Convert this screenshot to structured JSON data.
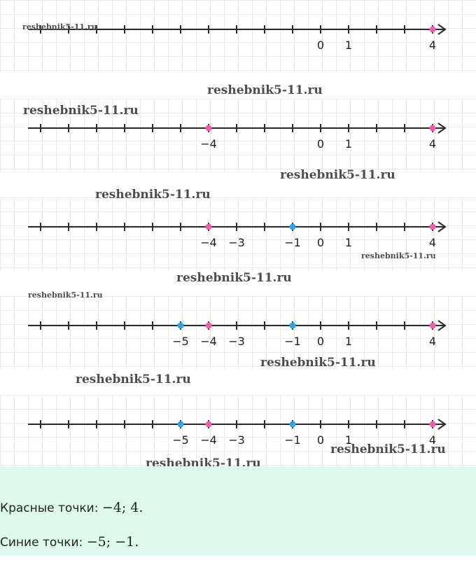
{
  "number_lines": [
    {
      "labels": [
        {
          "value": 0,
          "text": "0"
        },
        {
          "value": 1,
          "text": "1"
        },
        {
          "value": 4,
          "text": "4"
        }
      ],
      "points": [
        {
          "value": 4,
          "color": "red"
        }
      ]
    },
    {
      "labels": [
        {
          "value": -4,
          "text": "−4"
        },
        {
          "value": 0,
          "text": "0"
        },
        {
          "value": 1,
          "text": "1"
        },
        {
          "value": 4,
          "text": "4"
        }
      ],
      "points": [
        {
          "value": -4,
          "color": "red"
        },
        {
          "value": 4,
          "color": "red"
        }
      ]
    },
    {
      "labels": [
        {
          "value": -4,
          "text": "−4"
        },
        {
          "value": -3,
          "text": "−3"
        },
        {
          "value": -1,
          "text": "−1"
        },
        {
          "value": 0,
          "text": "0"
        },
        {
          "value": 1,
          "text": "1"
        },
        {
          "value": 4,
          "text": "4"
        }
      ],
      "points": [
        {
          "value": -4,
          "color": "red"
        },
        {
          "value": -1,
          "color": "blue"
        },
        {
          "value": 4,
          "color": "red"
        }
      ]
    },
    {
      "labels": [
        {
          "value": -5,
          "text": "−5"
        },
        {
          "value": -4,
          "text": "−4"
        },
        {
          "value": -3,
          "text": "−3"
        },
        {
          "value": -1,
          "text": "−1"
        },
        {
          "value": 0,
          "text": "0"
        },
        {
          "value": 1,
          "text": "1"
        },
        {
          "value": 4,
          "text": "4"
        }
      ],
      "points": [
        {
          "value": -5,
          "color": "blue"
        },
        {
          "value": -4,
          "color": "red"
        },
        {
          "value": -1,
          "color": "blue"
        },
        {
          "value": 4,
          "color": "red"
        }
      ]
    },
    {
      "labels": [
        {
          "value": -5,
          "text": "−5"
        },
        {
          "value": -4,
          "text": "−4"
        },
        {
          "value": -3,
          "text": "−3"
        },
        {
          "value": -1,
          "text": "−1"
        },
        {
          "value": 0,
          "text": "0"
        },
        {
          "value": 1,
          "text": "1"
        },
        {
          "value": 4,
          "text": "4"
        }
      ],
      "points": [
        {
          "value": -5,
          "color": "blue"
        },
        {
          "value": -4,
          "color": "red"
        },
        {
          "value": -1,
          "color": "blue"
        },
        {
          "value": 4,
          "color": "red"
        }
      ]
    }
  ],
  "axis_range": [
    -10,
    4
  ],
  "colors": {
    "red": "#ee5fb0",
    "blue": "#2aa6e2",
    "axis": "#2b2b2b",
    "answer_bg": "#defaec"
  },
  "watermark_text": "reshebnik5-11.ru",
  "answer": {
    "red_label": "Красные точки: ",
    "red_value": "−4; 4.",
    "blue_label": "Синие точки: ",
    "blue_value": "−5; −1."
  }
}
